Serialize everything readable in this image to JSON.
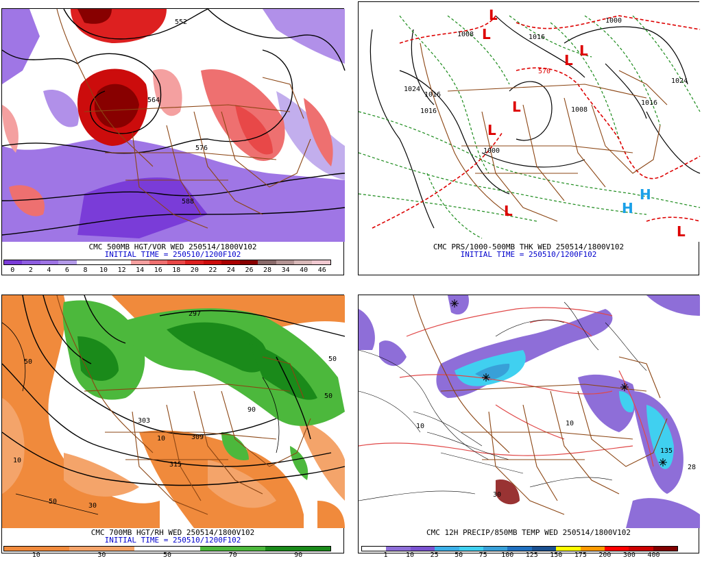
{
  "panels": [
    {
      "title": "CMC 500MB HGT/VOR WED 250514/1800V102",
      "init": "INITIAL TIME = 250510/1200F102",
      "contours": [
        "552",
        "564",
        "576",
        "588"
      ],
      "scale_colors": [
        "#7a3cd8",
        "#8e5ee0",
        "#9e74e4",
        "#b39ae8",
        "#ffffff",
        "#ffffff",
        "#ffffff",
        "#f4a0a0",
        "#ee7070",
        "#e84848",
        "#dd2020",
        "#cc0c0c",
        "#aa0000",
        "#880000",
        "#8a6a6a",
        "#b49494",
        "#d8b8b8",
        "#f0c8d0"
      ],
      "scale_ticks": [
        "0",
        "2",
        "4",
        "6",
        "8",
        "10",
        "12",
        "14",
        "16",
        "18",
        "20",
        "22",
        "24",
        "26",
        "28",
        "34",
        "40",
        "46"
      ]
    },
    {
      "title": "CMC PRS/1000-500MB THK WED 250514/1800V102",
      "init": "INITIAL TIME = 250510/1200F102",
      "contours": [
        "1024",
        "1016",
        "1016",
        "1008",
        "1016",
        "1000",
        "1008",
        "1000",
        "1024",
        "1016",
        "570"
      ],
      "lows": [
        "L",
        "L",
        "L",
        "L",
        "L",
        "L",
        "L",
        "L"
      ],
      "highs": [
        "H",
        "H"
      ]
    },
    {
      "title": "CMC 700MB HGT/RH WED 250514/1800V102",
      "init": "INITIAL TIME = 250510/1200F102",
      "contours": [
        "297",
        "303",
        "309",
        "315",
        "10",
        "50",
        "30",
        "50",
        "10",
        "50",
        "90",
        "50"
      ],
      "scale_colors": [
        "#f08a3c",
        "#f08a3c",
        "#f4a46a",
        "#f4a46a",
        "#ffffff",
        "#ffffff",
        "#4cb83c",
        "#4cb83c",
        "#1a8a1a",
        "#1a8a1a"
      ],
      "scale_ticks": [
        "10",
        "30",
        "50",
        "70",
        "90"
      ]
    },
    {
      "title": "CMC 12H PRECIP/850MB TEMP WED 250514/1800V102",
      "contours": [
        "30",
        "135",
        "28",
        "10",
        "10"
      ],
      "scale_colors": [
        "#ffffff",
        "#8e6ed8",
        "#7a52d0",
        "#3cb0e8",
        "#40d0f0",
        "#38a0d8",
        "#2070c0",
        "#1a5090",
        "#ffff00",
        "#ff9a00",
        "#ff0000",
        "#cc0000",
        "#800000"
      ],
      "scale_ticks": [
        "1",
        "10",
        "25",
        "50",
        "75",
        "100",
        "125",
        "150",
        "175",
        "200",
        "300",
        "400"
      ]
    }
  ]
}
